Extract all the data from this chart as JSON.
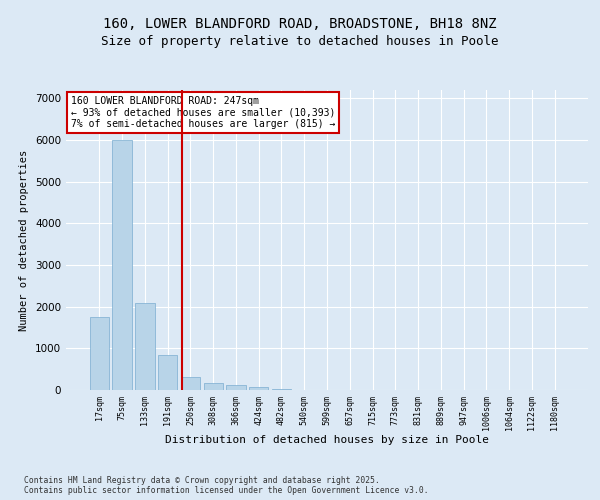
{
  "title1": "160, LOWER BLANDFORD ROAD, BROADSTONE, BH18 8NZ",
  "title2": "Size of property relative to detached houses in Poole",
  "xlabel": "Distribution of detached houses by size in Poole",
  "ylabel": "Number of detached properties",
  "categories": [
    "17sqm",
    "75sqm",
    "133sqm",
    "191sqm",
    "250sqm",
    "308sqm",
    "366sqm",
    "424sqm",
    "482sqm",
    "540sqm",
    "599sqm",
    "657sqm",
    "715sqm",
    "773sqm",
    "831sqm",
    "889sqm",
    "947sqm",
    "1006sqm",
    "1064sqm",
    "1122sqm",
    "1180sqm"
  ],
  "values": [
    1750,
    6000,
    2100,
    830,
    320,
    175,
    120,
    65,
    30,
    8,
    3,
    0,
    0,
    0,
    0,
    0,
    0,
    0,
    0,
    0,
    0
  ],
  "bar_color": "#b8d4e8",
  "bar_edge_color": "#7aadd0",
  "vline_color": "#cc0000",
  "annotation_text": "160 LOWER BLANDFORD ROAD: 247sqm\n← 93% of detached houses are smaller (10,393)\n7% of semi-detached houses are larger (815) →",
  "annotation_box_color": "#ffffff",
  "annotation_box_edge": "#cc0000",
  "background_color": "#dce9f5",
  "plot_bg_color": "#dce9f5",
  "footer1": "Contains HM Land Registry data © Crown copyright and database right 2025.",
  "footer2": "Contains public sector information licensed under the Open Government Licence v3.0.",
  "ylim": [
    0,
    7200
  ],
  "yticks": [
    0,
    1000,
    2000,
    3000,
    4000,
    5000,
    6000,
    7000
  ],
  "grid_color": "#ffffff",
  "title_fontsize": 10,
  "subtitle_fontsize": 9,
  "vline_pos": 3.62
}
